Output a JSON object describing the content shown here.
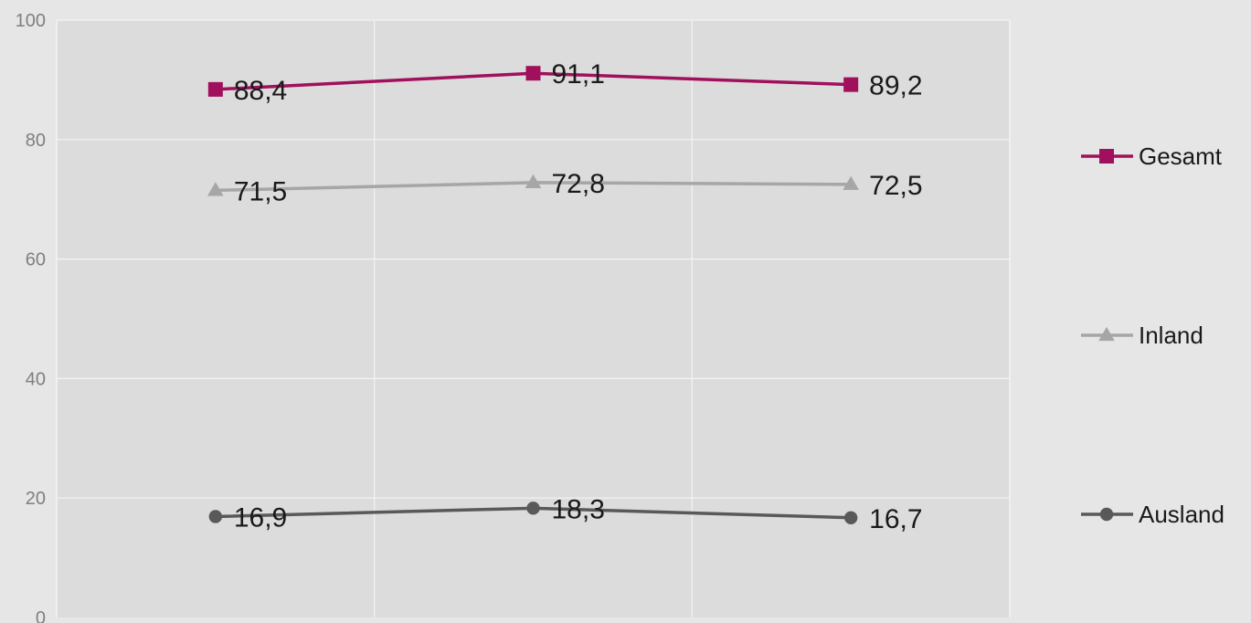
{
  "chart_data": {
    "type": "line",
    "title": "",
    "xlabel": "",
    "ylabel": "",
    "ylim": [
      0,
      100
    ],
    "yticks": [
      0,
      20,
      40,
      60,
      80,
      100
    ],
    "x": [
      1,
      2,
      3
    ],
    "grid": true,
    "legend": "right",
    "series": [
      {
        "name": "Gesamt",
        "values": [
          88.4,
          91.1,
          89.2
        ],
        "labels": [
          "88,4",
          "91,1",
          "89,2"
        ],
        "color": "#a0105c",
        "marker": "square"
      },
      {
        "name": "Inland",
        "values": [
          71.5,
          72.8,
          72.5
        ],
        "labels": [
          "71,5",
          "72,8",
          "72,5"
        ],
        "color": "#a6a6a6",
        "marker": "triangle"
      },
      {
        "name": "Ausland",
        "values": [
          16.9,
          18.3,
          16.7
        ],
        "labels": [
          "16,9",
          "18,3",
          "16,7"
        ],
        "color": "#595959",
        "marker": "circle"
      }
    ]
  }
}
